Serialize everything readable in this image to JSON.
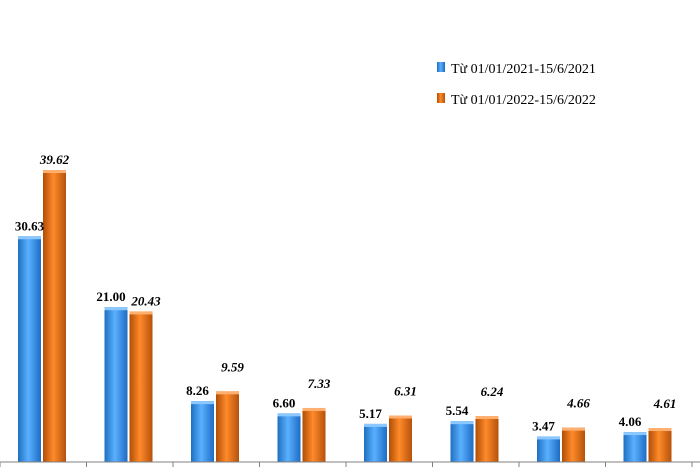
{
  "chart_data": {
    "type": "bar",
    "categories": [
      "",
      "",
      "",
      "",
      "",
      "",
      "",
      ""
    ],
    "series": [
      {
        "name": "Từ 01/01/2021-15/6/2021",
        "values": [
          30.63,
          21.0,
          8.26,
          6.6,
          5.17,
          5.54,
          3.47,
          4.06
        ],
        "labels": [
          "30.63",
          "21.00",
          "8.26",
          "6.60",
          "5.17",
          "5.54",
          "3.47",
          "4.06"
        ],
        "color": "#2f8fe0"
      },
      {
        "name": "Từ 01/01/2022-15/6/2022",
        "values": [
          39.62,
          20.43,
          9.59,
          7.33,
          6.31,
          6.24,
          4.66,
          4.61
        ],
        "labels": [
          "39.62",
          "20.43",
          "9.59",
          "7.33",
          "6.31",
          "6.24",
          "4.66",
          "4.61"
        ],
        "color": "#e36c0a"
      }
    ],
    "ylim": [
      0,
      42
    ],
    "grid": false,
    "legend_position": "top-right"
  }
}
